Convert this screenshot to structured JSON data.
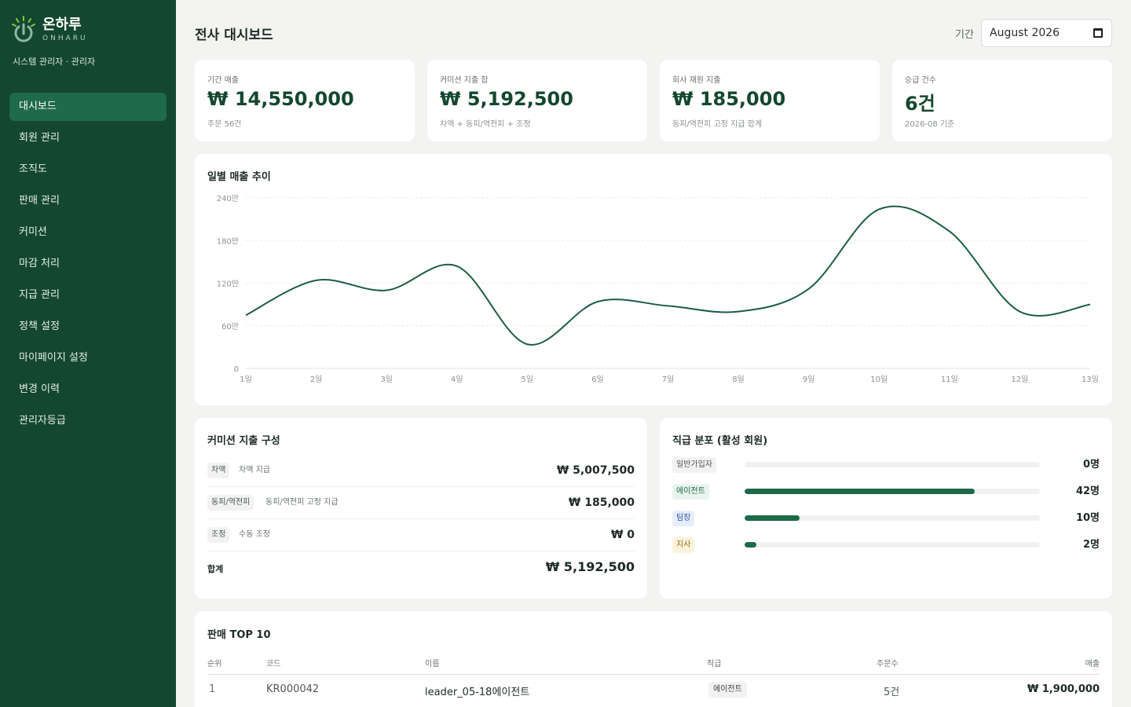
{
  "brand": {
    "name": "온하루",
    "sub": "ONHARU"
  },
  "role": "시스템 관리자 · 관리자",
  "nav": {
    "items": [
      {
        "label": "대시보드",
        "active": true
      },
      {
        "label": "회원 관리"
      },
      {
        "label": "조직도"
      },
      {
        "label": "판매 관리"
      },
      {
        "label": "커미션"
      },
      {
        "label": "마감 처리"
      },
      {
        "label": "지급 관리"
      },
      {
        "label": "정책 설정"
      },
      {
        "label": "마이페이지 설정"
      },
      {
        "label": "변경 이력"
      },
      {
        "label": "관리자등급"
      }
    ]
  },
  "header": {
    "title": "전사 대시보드",
    "period_label": "기간",
    "period_value": "August 2026"
  },
  "kpis": [
    {
      "label": "기간 매출",
      "value": "₩ 14,550,000",
      "sub": "주문 56건"
    },
    {
      "label": "커미션 지출 합",
      "value": "₩ 5,192,500",
      "sub": "차액 + 동피/역전피 + 조정"
    },
    {
      "label": "회사 재원 지출",
      "value": "₩ 185,000",
      "sub": "동피/역전피 고정 지급 합계"
    },
    {
      "label": "승급 건수",
      "value": "6건",
      "sub": "2026-08 기준"
    }
  ],
  "chart_data": {
    "type": "line",
    "title": "일별 매출 추이",
    "categories": [
      "1일",
      "2일",
      "3일",
      "4일",
      "5일",
      "6일",
      "7일",
      "8일",
      "9일",
      "10일",
      "11일",
      "12일",
      "13일"
    ],
    "series": [
      {
        "values": [
          750000,
          1240000,
          1100000,
          1440000,
          340000,
          940000,
          880000,
          800000,
          1120000,
          2240000,
          1930000,
          800000,
          900000
        ]
      }
    ],
    "y_ticks": [
      "0",
      "60만",
      "120만",
      "180만",
      "240만"
    ],
    "ylim": [
      0,
      2400000
    ],
    "grid": true,
    "line_color": "#1c5e40"
  },
  "commission": {
    "title": "커미션 지출 구성",
    "rows": [
      {
        "tag": "차액",
        "desc": "차액 지급",
        "amount": "₩ 5,007,500"
      },
      {
        "tag": "동피/역전피",
        "desc": "동피/역전피 고정 지급",
        "amount": "₩ 185,000"
      },
      {
        "tag": "조정",
        "desc": "수동 조정",
        "amount": "₩ 0"
      }
    ],
    "total_label": "합계",
    "total_amount": "₩ 5,192,500"
  },
  "ranks": {
    "title": "직급 분포 (활성 회원)",
    "rows": [
      {
        "label": "일반가입자",
        "count": "0명",
        "fraction": 0.0,
        "bg": "#f1f2f1",
        "fg": "#4e5752"
      },
      {
        "label": "에이전트",
        "count": "42명",
        "fraction": 0.78,
        "bg": "#e8f4ed",
        "fg": "#1c6a47"
      },
      {
        "label": "팀장",
        "count": "10명",
        "fraction": 0.186,
        "bg": "#e7eefb",
        "fg": "#2f56b0"
      },
      {
        "label": "지사",
        "count": "2명",
        "fraction": 0.04,
        "bg": "#fbf3dc",
        "fg": "#9a6b0c"
      }
    ]
  },
  "top10": {
    "title": "판매 TOP 10",
    "headers": {
      "rank": "순위",
      "code": "코드",
      "name": "이름",
      "grade": "직급",
      "orders": "주문수",
      "sales": "매출"
    },
    "rows": [
      {
        "rank": "1",
        "code": "KR000042",
        "name": "leader_05-18에이전트",
        "grade": "에이전트",
        "orders": "5건",
        "sales": "₩ 1,900,000"
      }
    ]
  }
}
